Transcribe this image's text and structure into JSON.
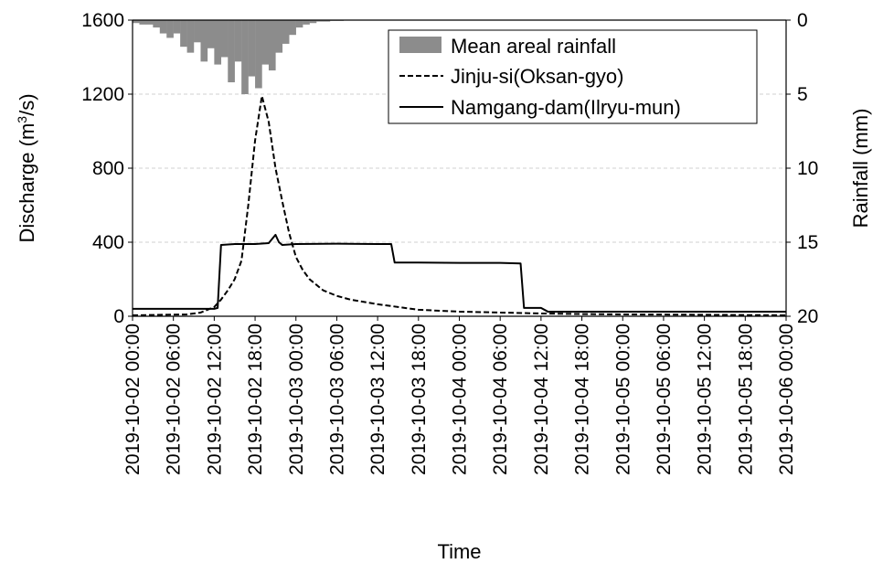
{
  "chart_data": {
    "type": "line",
    "x_unit": "datetime",
    "x_range": [
      "2019-10-02 00:00",
      "2019-10-06 00:00"
    ],
    "x_ticks": [
      "2019-10-02 00:00",
      "2019-10-02 06:00",
      "2019-10-02 12:00",
      "2019-10-02 18:00",
      "2019-10-03 00:00",
      "2019-10-03 06:00",
      "2019-10-03 12:00",
      "2019-10-03 18:00",
      "2019-10-04 00:00",
      "2019-10-04 06:00",
      "2019-10-04 12:00",
      "2019-10-04 18:00",
      "2019-10-05 00:00",
      "2019-10-05 06:00",
      "2019-10-05 12:00",
      "2019-10-05 18:00",
      "2019-10-06 00:00"
    ],
    "xlabel": "Time",
    "ylabel_left_prefix": "Discharge (m",
    "ylabel_left_sup": "3",
    "ylabel_left_suffix": "/s)",
    "ylabel_right": "Rainfall (mm)",
    "ylim_left": [
      0,
      1600
    ],
    "y_ticks_left": [
      "0",
      "400",
      "800",
      "1200",
      "1600"
    ],
    "ylim_right": [
      0,
      20
    ],
    "y_ticks_right": [
      "0",
      "5",
      "10",
      "15",
      "20"
    ],
    "right_axis_inverted": true,
    "grid": "horizontal-dashed",
    "legend_position": "top-right",
    "colors": {
      "rainfall": "#8c8c8c",
      "line": "#000000",
      "grid": "#d0d0d0"
    },
    "series": [
      {
        "name": "Mean areal rainfall",
        "kind": "bar-hanging",
        "axis": "right",
        "x": [
          "2019-10-02 00:00",
          "2019-10-02 01:00",
          "2019-10-02 02:00",
          "2019-10-02 03:00",
          "2019-10-02 04:00",
          "2019-10-02 05:00",
          "2019-10-02 06:00",
          "2019-10-02 07:00",
          "2019-10-02 08:00",
          "2019-10-02 09:00",
          "2019-10-02 10:00",
          "2019-10-02 11:00",
          "2019-10-02 12:00",
          "2019-10-02 13:00",
          "2019-10-02 14:00",
          "2019-10-02 15:00",
          "2019-10-02 16:00",
          "2019-10-02 17:00",
          "2019-10-02 18:00",
          "2019-10-02 19:00",
          "2019-10-02 20:00",
          "2019-10-02 21:00",
          "2019-10-02 22:00",
          "2019-10-02 23:00",
          "2019-10-03 00:00",
          "2019-10-03 01:00",
          "2019-10-03 02:00",
          "2019-10-03 03:00",
          "2019-10-03 04:00",
          "2019-10-03 05:00",
          "2019-10-03 06:00"
        ],
        "values": [
          0.2,
          0.3,
          0.3,
          0.5,
          0.9,
          1.2,
          0.9,
          1.8,
          2.2,
          1.5,
          2.8,
          1.9,
          3.0,
          2.5,
          4.2,
          2.8,
          5.0,
          3.8,
          4.6,
          3.0,
          3.4,
          2.2,
          1.6,
          1.0,
          0.5,
          0.3,
          0.2,
          0.1,
          0.1,
          0.05,
          0.05
        ]
      },
      {
        "name": "Jinju-si(Oksan-gyo)",
        "kind": "line-dashed",
        "axis": "left",
        "x": [
          "2019-10-02 00:00",
          "2019-10-02 08:00",
          "2019-10-02 10:00",
          "2019-10-02 12:00",
          "2019-10-02 13:00",
          "2019-10-02 14:00",
          "2019-10-02 15:00",
          "2019-10-02 16:00",
          "2019-10-02 17:00",
          "2019-10-02 18:00",
          "2019-10-02 19:00",
          "2019-10-02 20:00",
          "2019-10-02 21:00",
          "2019-10-02 22:00",
          "2019-10-02 23:00",
          "2019-10-03 00:00",
          "2019-10-03 01:00",
          "2019-10-03 02:00",
          "2019-10-03 04:00",
          "2019-10-03 06:00",
          "2019-10-03 08:00",
          "2019-10-03 12:00",
          "2019-10-03 18:00",
          "2019-10-04 00:00",
          "2019-10-04 06:00",
          "2019-10-04 12:00",
          "2019-10-04 18:00",
          "2019-10-05 00:00",
          "2019-10-05 12:00",
          "2019-10-06 00:00"
        ],
        "values": [
          5,
          10,
          20,
          50,
          90,
          140,
          200,
          300,
          600,
          950,
          1190,
          1050,
          800,
          620,
          450,
          320,
          250,
          200,
          140,
          110,
          90,
          65,
          35,
          25,
          20,
          15,
          12,
          10,
          8,
          5
        ]
      },
      {
        "name": "Namgang-dam(Ilryu-mun)",
        "kind": "line-solid",
        "axis": "left",
        "x": [
          "2019-10-02 00:00",
          "2019-10-02 12:00",
          "2019-10-02 12:30",
          "2019-10-02 13:00",
          "2019-10-02 15:00",
          "2019-10-02 18:00",
          "2019-10-02 20:00",
          "2019-10-02 21:00",
          "2019-10-02 21:30",
          "2019-10-02 22:00",
          "2019-10-03 00:00",
          "2019-10-03 06:00",
          "2019-10-03 12:00",
          "2019-10-03 14:00",
          "2019-10-03 14:30",
          "2019-10-03 18:00",
          "2019-10-04 00:00",
          "2019-10-04 06:00",
          "2019-10-04 09:00",
          "2019-10-04 09:30",
          "2019-10-04 10:30",
          "2019-10-04 12:00",
          "2019-10-04 13:00",
          "2019-10-04 18:00",
          "2019-10-05 12:00",
          "2019-10-06 00:00"
        ],
        "values": [
          40,
          40,
          45,
          385,
          390,
          390,
          395,
          440,
          400,
          385,
          390,
          392,
          390,
          390,
          290,
          290,
          288,
          288,
          285,
          45,
          45,
          45,
          25,
          25,
          25,
          25
        ]
      }
    ]
  }
}
